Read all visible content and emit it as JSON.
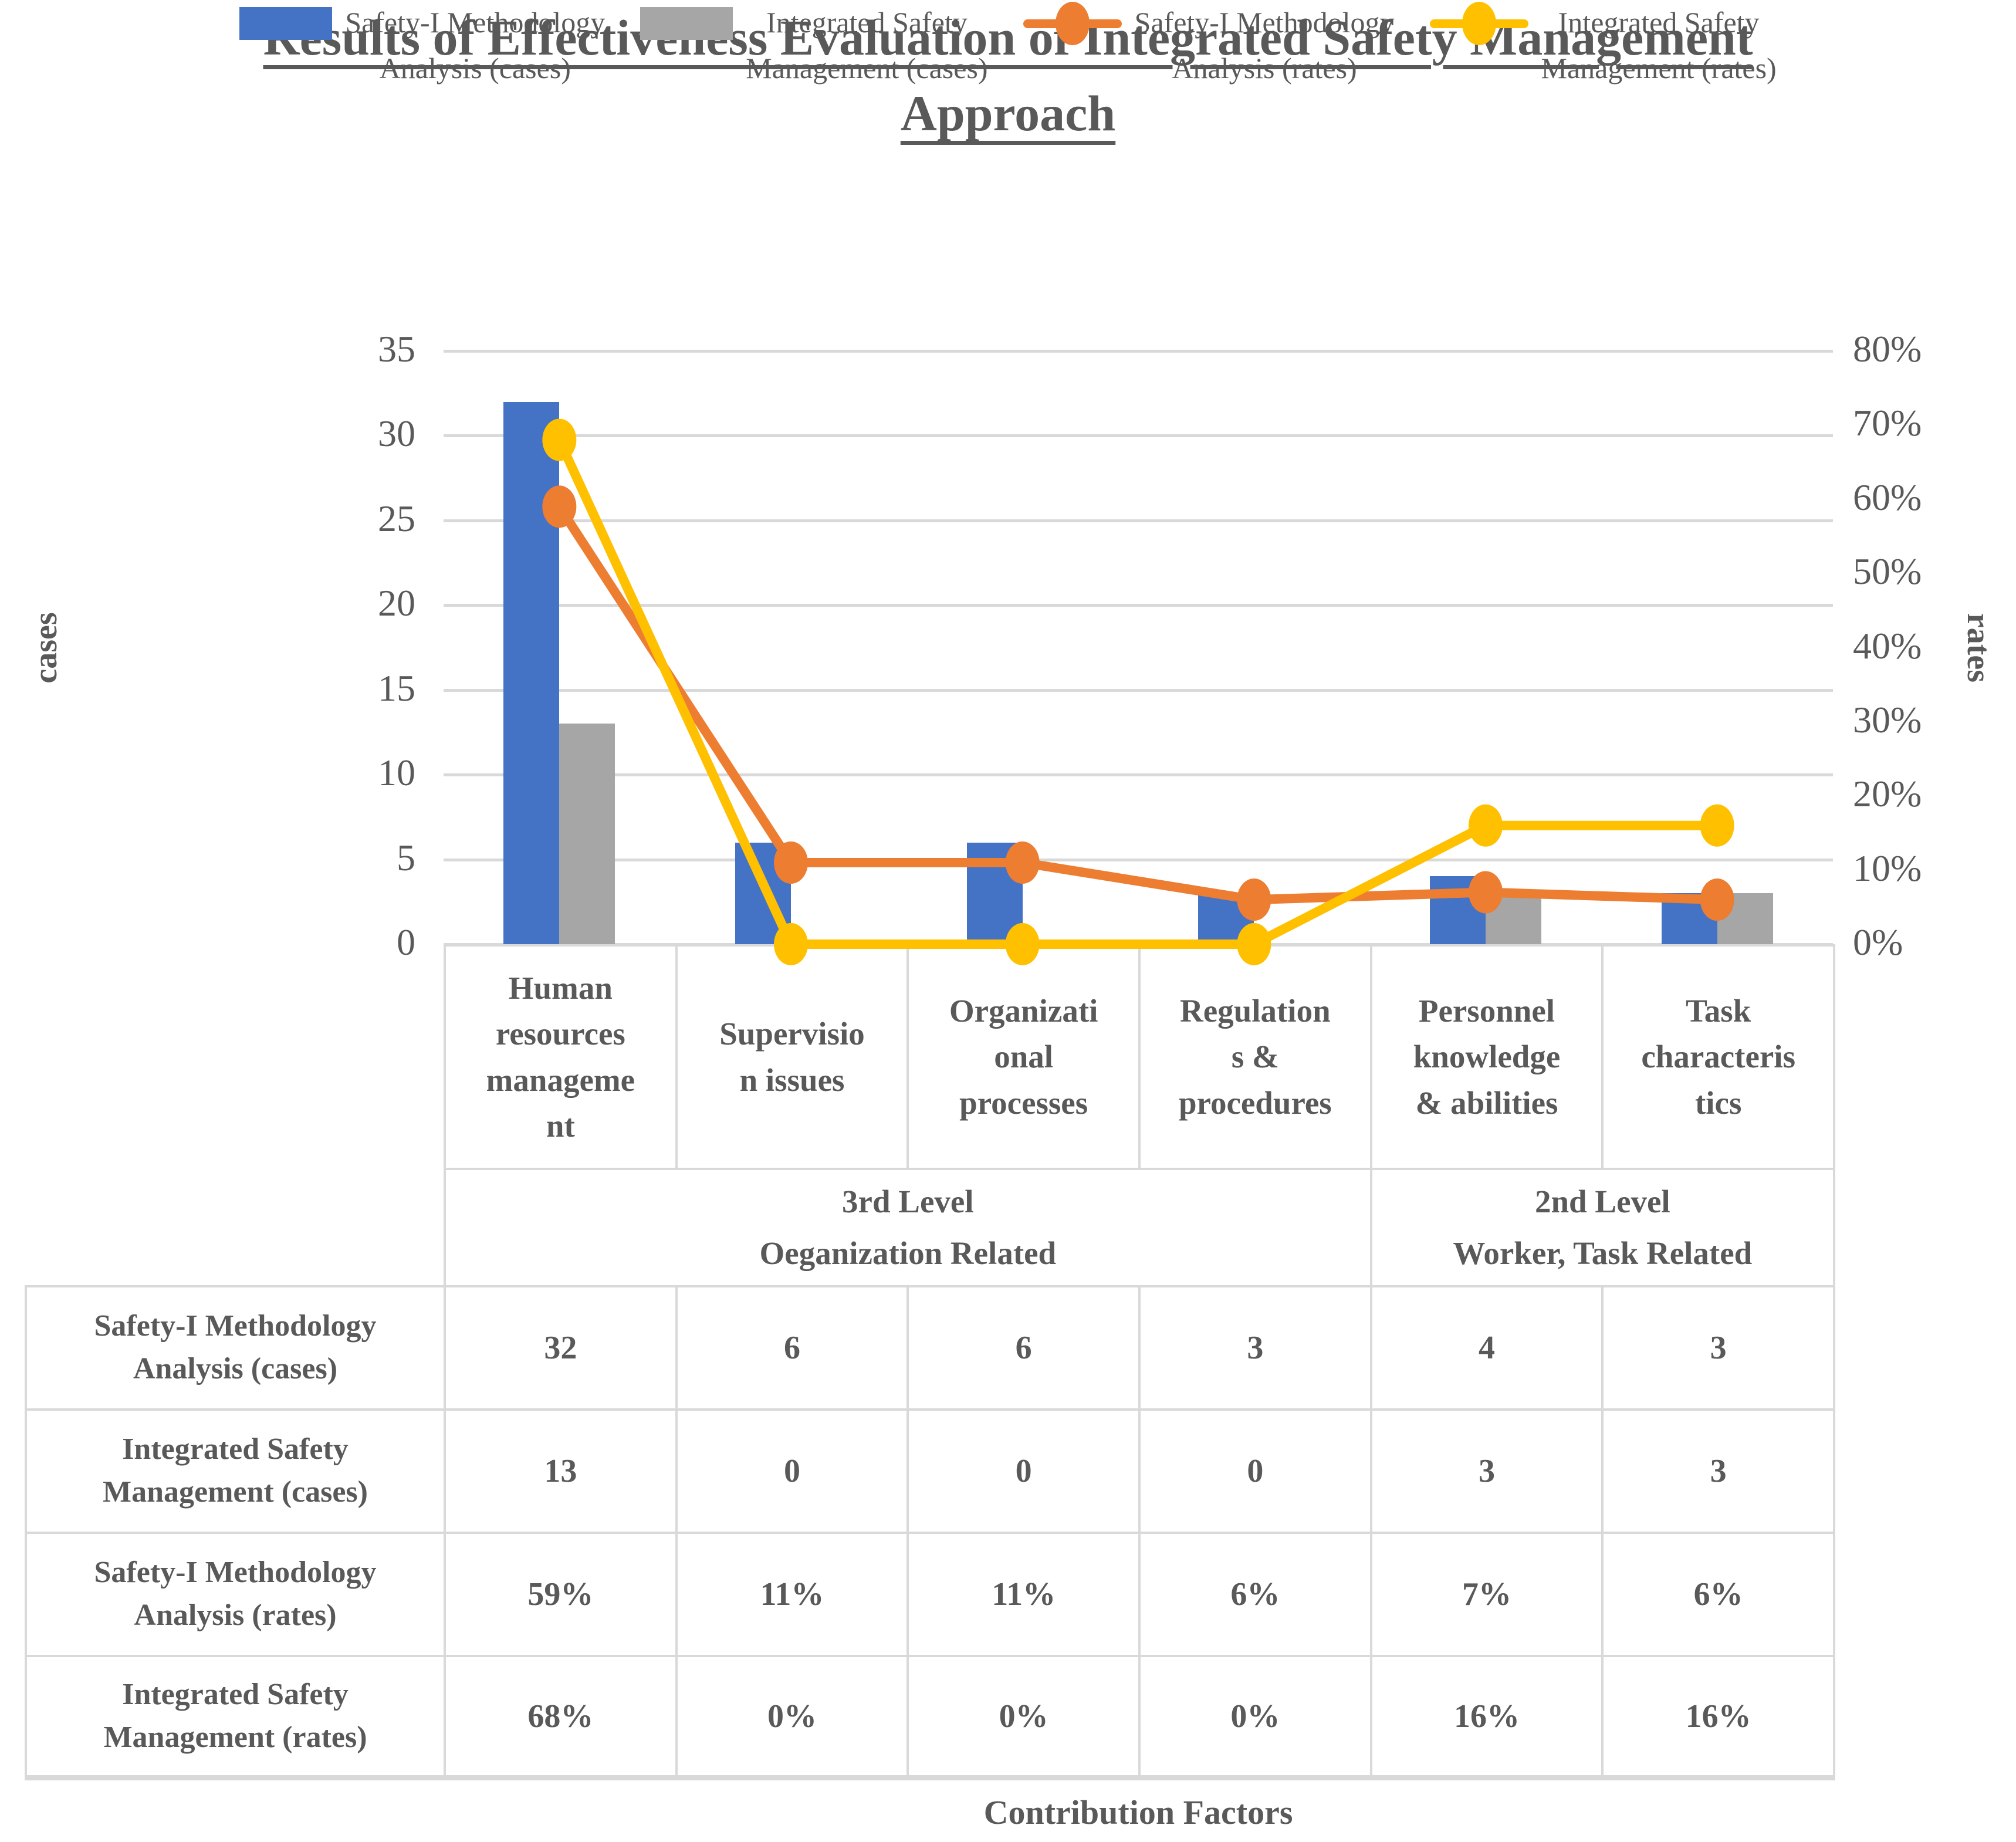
{
  "title": {
    "line1": "Results of Effectiveness Evaluation of Integrated Safety Management",
    "line2": "Approach"
  },
  "colors": {
    "blue": "#4472C4",
    "gray": "#A6A6A6",
    "orange": "#ED7D31",
    "yellow": "#FFC000",
    "text": "#595959",
    "grid": "#D9D9D9"
  },
  "legend": [
    {
      "swatch": "bar",
      "color": "blue",
      "lines": [
        "Safety-I Methodology",
        "Analysis (cases)"
      ]
    },
    {
      "swatch": "bar",
      "color": "gray",
      "lines": [
        "Integrated Safety",
        "Management (cases)"
      ]
    },
    {
      "swatch": "line",
      "color": "orange",
      "lines": [
        "Safety-I Methodology",
        "Analysis (rates)"
      ]
    },
    {
      "swatch": "line",
      "color": "yellow",
      "lines": [
        "Integrated Safety",
        "Management (rates)"
      ]
    }
  ],
  "axes": {
    "left": {
      "title": "cases",
      "ticks": [
        "35",
        "30",
        "25",
        "20",
        "15",
        "10",
        "5",
        "0"
      ]
    },
    "right": {
      "title": "rates",
      "ticks": [
        "80%",
        "70%",
        "60%",
        "50%",
        "40%",
        "30%",
        "20%",
        "10%",
        "0%"
      ]
    },
    "x": {
      "title": "Contribution Factors"
    }
  },
  "categories": [
    {
      "lines": [
        "Human",
        "resources",
        "manageme",
        "nt"
      ]
    },
    {
      "lines": [
        "Supervisio",
        "n issues"
      ]
    },
    {
      "lines": [
        "Organizati",
        "onal",
        "processes"
      ]
    },
    {
      "lines": [
        "Regulation",
        "s &",
        "procedures"
      ]
    },
    {
      "lines": [
        "Personnel",
        "knowledge",
        "& abilities"
      ]
    },
    {
      "lines": [
        "Task",
        "characteris",
        "tics"
      ]
    }
  ],
  "groups": [
    {
      "lines": [
        "3rd Level",
        "Oeganization Related"
      ],
      "span": 4
    },
    {
      "lines": [
        "2nd Level",
        "Worker, Task Related"
      ],
      "span": 2
    }
  ],
  "table_rows": [
    {
      "header": [
        "Safety-I Methodology",
        "Analysis (cases)"
      ],
      "values": [
        "32",
        "6",
        "6",
        "3",
        "4",
        "3"
      ]
    },
    {
      "header": [
        "Integrated Safety",
        "Management (cases)"
      ],
      "values": [
        "13",
        "0",
        "0",
        "0",
        "3",
        "3"
      ]
    },
    {
      "header": [
        "Safety-I Methodology",
        "Analysis (rates)"
      ],
      "values": [
        "59%",
        "11%",
        "11%",
        "6%",
        "7%",
        "6%"
      ]
    },
    {
      "header": [
        "Integrated Safety",
        "Management (rates)"
      ],
      "values": [
        "68%",
        "0%",
        "0%",
        "0%",
        "16%",
        "16%"
      ]
    }
  ],
  "chart_data": {
    "type": "combo",
    "title": "Results of Effectiveness Evaluation of Integrated Safety Management Approach",
    "categories": [
      "Human resources management",
      "Supervision issues",
      "Organizational processes",
      "Regulations & procedures",
      "Personnel knowledge & abilities",
      "Task characteristics"
    ],
    "category_groups": [
      {
        "label": "3rd Level Oeganization Related",
        "span": 4
      },
      {
        "label": "2nd Level Worker, Task Related",
        "span": 2
      }
    ],
    "series": [
      {
        "name": "Safety-I Methodology Analysis (cases)",
        "type": "bar",
        "axis": "left",
        "color": "blue",
        "values": [
          32,
          6,
          6,
          3,
          4,
          3
        ]
      },
      {
        "name": "Integrated Safety Management (cases)",
        "type": "bar",
        "axis": "left",
        "color": "gray",
        "values": [
          13,
          0,
          0,
          0,
          3,
          3
        ]
      },
      {
        "name": "Safety-I Methodology Analysis (rates)",
        "type": "line",
        "axis": "right",
        "color": "orange",
        "values": [
          59,
          11,
          11,
          6,
          7,
          6
        ]
      },
      {
        "name": "Integrated Safety Management (rates)",
        "type": "line",
        "axis": "right",
        "color": "yellow",
        "values": [
          68,
          0,
          0,
          0,
          16,
          16
        ]
      }
    ],
    "left_axis": {
      "title": "cases",
      "min": 0,
      "max": 35,
      "step": 5
    },
    "right_axis": {
      "title": "rates",
      "min": 0,
      "max": 80,
      "step": 10,
      "unit": "%"
    },
    "xlabel": "Contribution Factors",
    "grid": true,
    "legend_position": "top"
  }
}
